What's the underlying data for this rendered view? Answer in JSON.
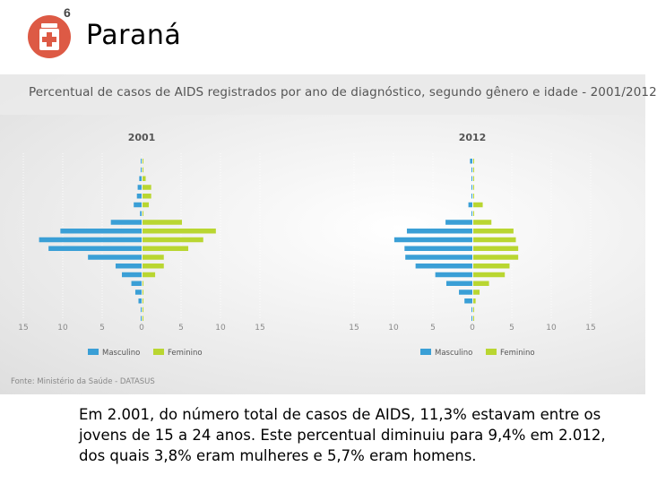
{
  "header": {
    "slide_number": "6",
    "title": "Paraná"
  },
  "panel": {
    "title": "Percentual de casos de AIDS registrados por ano de diagnóstico, segundo gênero e idade - 2001/2012",
    "source": "Fonte: Ministério da Saúde - DATASUS"
  },
  "colors": {
    "masculino": "#3a9fd6",
    "feminino": "#b9d631",
    "badge": "#dd5a45"
  },
  "chart_data": [
    {
      "type": "bar",
      "title": "2001",
      "orientation": "horizontal-pyramid",
      "x_ticks": [
        "15",
        "10",
        "5",
        "0",
        "5",
        "10",
        "15"
      ],
      "xlim": [
        -15,
        15
      ],
      "grid": true,
      "legend": [
        "Masculino",
        "Feminino"
      ],
      "series": [
        {
          "name": "Masculino",
          "values": [
            0.1,
            0.1,
            0.3,
            0.5,
            0.6,
            1.0,
            0.2,
            3.9,
            10.3,
            13.0,
            11.8,
            6.8,
            3.3,
            2.5,
            1.3,
            0.8,
            0.4,
            0.1,
            0.1
          ]
        },
        {
          "name": "Feminino",
          "values": [
            0.1,
            0.1,
            0.4,
            1.1,
            1.1,
            0.8,
            0.1,
            5.0,
            9.3,
            7.7,
            5.8,
            2.7,
            2.7,
            1.6,
            0.1,
            0.1,
            0.1,
            0.1,
            0.1
          ]
        }
      ]
    },
    {
      "type": "bar",
      "title": "2012",
      "orientation": "horizontal-pyramid",
      "x_ticks": [
        "15",
        "10",
        "5",
        "0",
        "5",
        "10",
        "15"
      ],
      "xlim": [
        -15,
        15
      ],
      "grid": true,
      "legend": [
        "Masculino",
        "Feminino"
      ],
      "series": [
        {
          "name": "Masculino",
          "values": [
            0.3,
            0.1,
            0.1,
            0.1,
            0.1,
            0.5,
            0.1,
            3.4,
            8.3,
            9.9,
            8.6,
            8.5,
            7.2,
            4.7,
            3.3,
            1.7,
            1.0,
            0.1,
            0.1
          ]
        },
        {
          "name": "Feminino",
          "values": [
            0.1,
            0.1,
            0.1,
            0.1,
            0.1,
            1.2,
            0.1,
            2.3,
            5.1,
            5.4,
            5.7,
            5.7,
            4.6,
            4.0,
            2.0,
            0.8,
            0.3,
            0.1,
            0.1
          ]
        }
      ]
    }
  ],
  "caption": {
    "line1": "Em 2.001, do número total de casos de AIDS, 11,3% estavam entre os",
    "line2": "jovens de 15 a 24 anos. Este percentual diminuiu para 9,4% em 2.012,",
    "line3": "dos quais 3,8% eram mulheres e 5,7% eram homens."
  }
}
